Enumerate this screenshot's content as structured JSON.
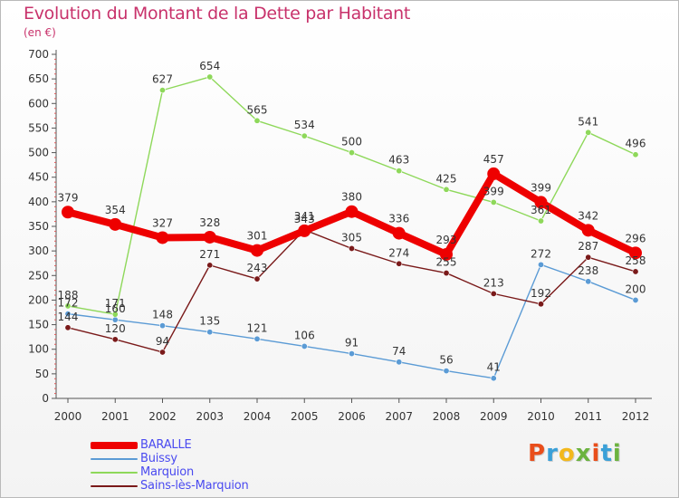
{
  "header": {
    "title": "Evolution du Montant de la Dette par Habitant",
    "subtitle": "(en €)"
  },
  "logo": {
    "text": "Proxiti",
    "letters": [
      {
        "ch": "P",
        "color": "#e94e1b"
      },
      {
        "ch": "r",
        "color": "#3aa0d8"
      },
      {
        "ch": "o",
        "color": "#f3b81c"
      },
      {
        "ch": "x",
        "color": "#6cb33f"
      },
      {
        "ch": "i",
        "color": "#e94e1b"
      },
      {
        "ch": "t",
        "color": "#3aa0d8"
      },
      {
        "ch": "i",
        "color": "#6cb33f"
      }
    ]
  },
  "chart_data": {
    "type": "line",
    "title": "Evolution du Montant de la Dette par Habitant",
    "ylabel": "(en €)",
    "xlabel": "",
    "ylim": [
      0,
      700
    ],
    "y_ticks": [
      0,
      50,
      100,
      150,
      200,
      250,
      300,
      350,
      400,
      450,
      500,
      550,
      600,
      650,
      700
    ],
    "grid": false,
    "legend_position": "bottom-left",
    "categories": [
      "2000",
      "2001",
      "2002",
      "2003",
      "2004",
      "2005",
      "2006",
      "2007",
      "2008",
      "2009",
      "2010",
      "2011",
      "2012"
    ],
    "series": [
      {
        "name": "BARALLE",
        "color": "#ee0000",
        "emphasis": true,
        "values": [
          379,
          354,
          327,
          328,
          301,
          341,
          380,
          336,
          293,
          457,
          399,
          342,
          296
        ]
      },
      {
        "name": "Buissy",
        "color": "#5b9bd5",
        "emphasis": false,
        "values": [
          172,
          160,
          148,
          135,
          121,
          106,
          91,
          74,
          56,
          41,
          272,
          238,
          200
        ]
      },
      {
        "name": "Marquion",
        "color": "#8ed85a",
        "emphasis": false,
        "values": [
          188,
          171,
          627,
          654,
          565,
          534,
          500,
          463,
          425,
          399,
          361,
          541,
          496
        ]
      },
      {
        "name": "Sains-lès-Marquion",
        "color": "#7a1a1a",
        "emphasis": false,
        "values": [
          144,
          120,
          94,
          271,
          243,
          343,
          305,
          274,
          255,
          213,
          192,
          287,
          258
        ]
      }
    ],
    "label_order": [
      "Marquion",
      "Buissy",
      "Sains-lès-Marquion",
      "BARALLE"
    ]
  }
}
